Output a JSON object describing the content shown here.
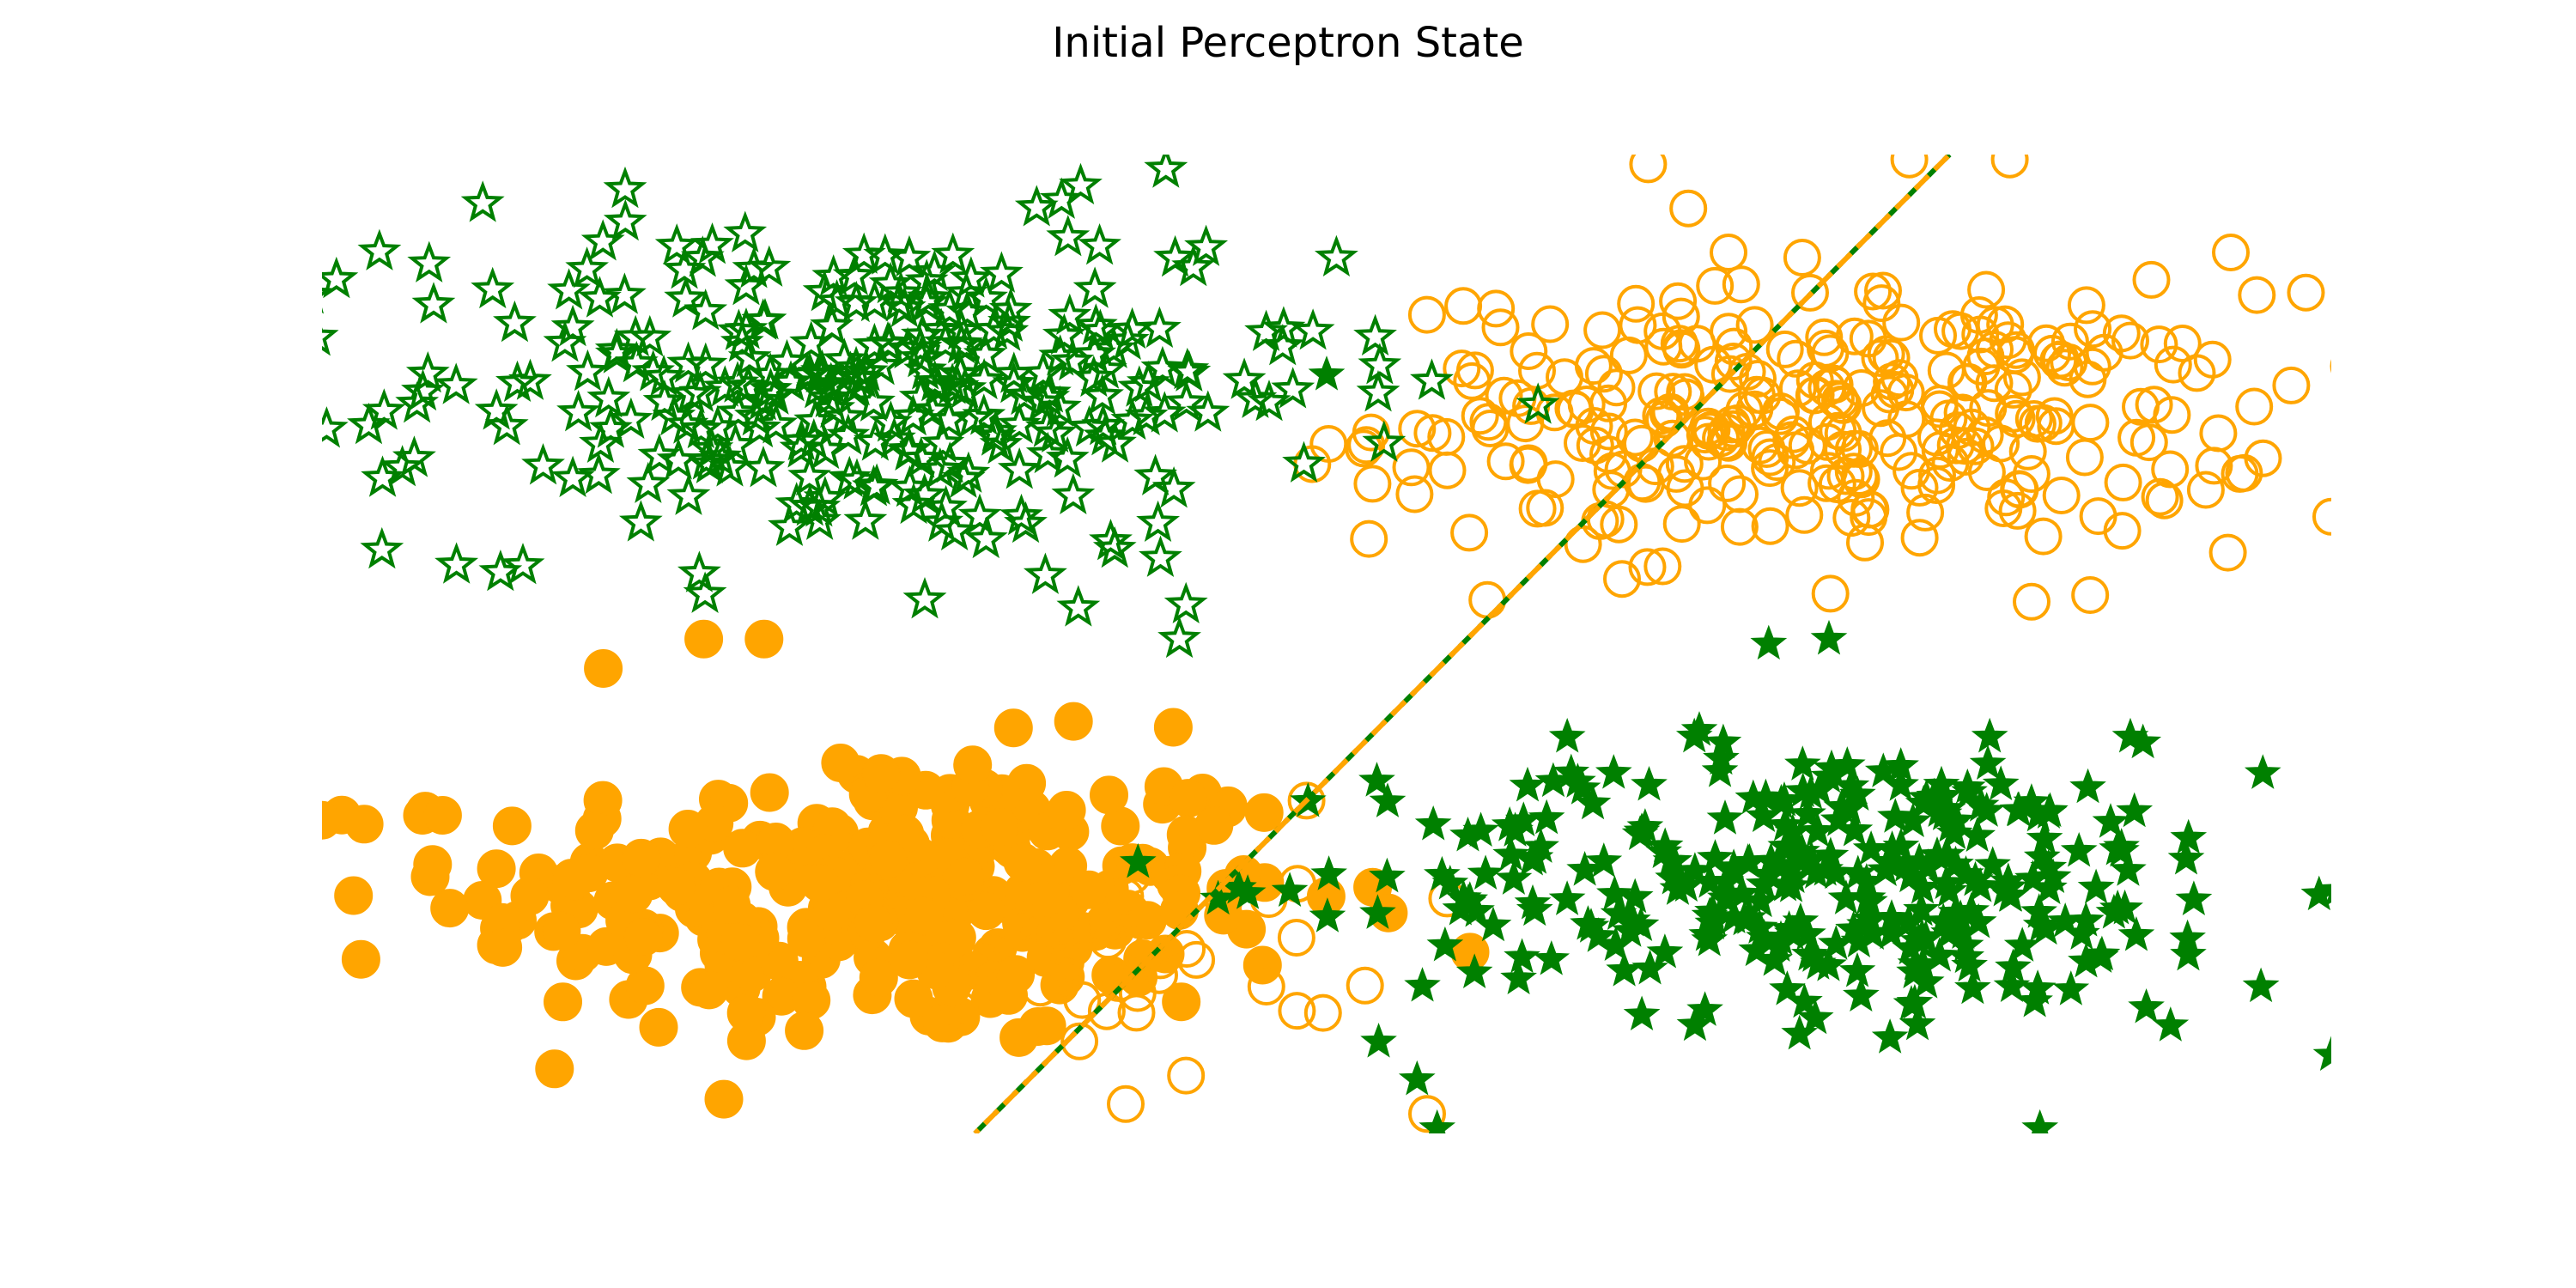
{
  "chart_data": {
    "type": "scatter",
    "title": "Initial Perceptron State",
    "xlabel": "",
    "ylabel": "",
    "xlim": [
      -5.0,
      5.0
    ],
    "ylim": [
      -5.0,
      5.0
    ],
    "axes_visible": false,
    "grid": false,
    "legend": "none",
    "colors": {
      "orange": "#FFA500",
      "green": "#008000"
    },
    "decision_boundary": {
      "style": "dashed",
      "colors": [
        "#008000",
        "#FFA500"
      ],
      "points": [
        [
          -1.75,
          -5.0
        ],
        [
          3.1,
          5.0
        ]
      ]
    },
    "clusters": [
      {
        "name": "",
        "marker": "circle",
        "color": "#FFA500",
        "fill": "filled",
        "center": [
          -2.2,
          -2.6
        ],
        "spread": [
          1.05,
          0.75
        ],
        "count": 300,
        "extra_points": [
          [
            -5.0,
            -1.8
          ],
          [
            -4.5,
            -1.75
          ],
          [
            -4.4,
            -1.75
          ],
          [
            -3.6,
            -0.25
          ],
          [
            -3.1,
            0.05
          ],
          [
            -2.8,
            0.05
          ],
          [
            -4.1,
            -3.1
          ],
          [
            -3.0,
            -4.65
          ],
          [
            -2.6,
            -3.95
          ],
          [
            -1.3,
            -3.4
          ]
        ]
      },
      {
        "name": "",
        "marker": "circle",
        "color": "#FFA500",
        "fill": "open",
        "center": [
          2.5,
          2.3
        ],
        "spread": [
          1.1,
          0.65
        ],
        "count": 300,
        "extra_points": [
          [
            2.0,
            4.0
          ],
          [
            4.5,
            4.0
          ],
          [
            2.9,
            4.95
          ],
          [
            1.6,
            4.9
          ],
          [
            3.4,
            4.95
          ],
          [
            1.8,
            4.45
          ],
          [
            0.45,
            2.2
          ],
          [
            3.8,
            0.5
          ],
          [
            5.0,
            1.3
          ],
          [
            4.0,
            3.1
          ],
          [
            0.8,
            0.45
          ]
        ]
      },
      {
        "name": "",
        "marker": "circle",
        "color": "#FFA500",
        "fill": "open",
        "center": [
          -0.8,
          -3.2
        ],
        "spread": [
          0.45,
          0.55
        ],
        "count": 30,
        "extra_points": [
          [
            0.6,
            -2.6
          ],
          [
            -0.1,
            -1.6
          ],
          [
            -1.0,
            -4.7
          ],
          [
            0.5,
            -4.8
          ],
          [
            -0.15,
            -3.0
          ],
          [
            -0.3,
            -3.5
          ],
          [
            -1.3,
            -3.1
          ]
        ]
      },
      {
        "name": "",
        "marker": "star",
        "color": "#008000",
        "fill": "open",
        "center": [
          -2.3,
          2.6
        ],
        "spread": [
          1.15,
          0.85
        ],
        "count": 300,
        "extra_points": [
          [
            -0.8,
            4.85
          ],
          [
            -0.6,
            4.05
          ],
          [
            -4.2,
            4.5
          ],
          [
            -4.6,
            1.8
          ],
          [
            -4.0,
            0.8
          ],
          [
            -2.0,
            0.45
          ],
          [
            -0.7,
            0.4
          ],
          [
            -1.4,
            0.7
          ]
        ]
      },
      {
        "name": "",
        "marker": "star",
        "color": "#008000",
        "fill": "filled",
        "center": [
          2.5,
          -2.4
        ],
        "spread": [
          1.1,
          0.7
        ],
        "count": 300,
        "extra_points": [
          [
            4.65,
            -3.5
          ],
          [
            5.0,
            -4.2
          ],
          [
            4.2,
            -3.9
          ],
          [
            0.45,
            -4.45
          ],
          [
            0.55,
            -4.95
          ],
          [
            3.55,
            -4.95
          ],
          [
            1.0,
            -1.45
          ],
          [
            3.3,
            -0.95
          ],
          [
            4.0,
            -0.95
          ]
        ]
      },
      {
        "name": "",
        "marker": "star",
        "color": "#008000",
        "fill": "filled",
        "center": [
          0.5,
          0.5
        ],
        "spread": [
          0.3,
          0.3
        ],
        "count": 0,
        "extra_points": [
          [
            0.0,
            2.75
          ],
          [
            0.25,
            -1.4
          ],
          [
            2.2,
            0.0
          ],
          [
            2.5,
            0.05
          ]
        ]
      }
    ]
  }
}
